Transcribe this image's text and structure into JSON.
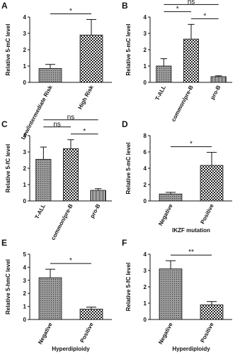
{
  "chart_data": [
    {
      "type": "bar",
      "panel": "A",
      "ylabel": "Relative 5-mC level",
      "categories": [
        "Low/intermediate Risk",
        "High Risk"
      ],
      "values": [
        0.85,
        2.9
      ],
      "errors": [
        0.25,
        0.95
      ],
      "ylim": [
        0,
        4
      ],
      "yticks": [
        0,
        1,
        2,
        3,
        4
      ],
      "comparisons": [
        {
          "pair": [
            0,
            1
          ],
          "label": "*"
        }
      ]
    },
    {
      "type": "bar",
      "panel": "B",
      "ylabel": "Relative 5-mC level",
      "categories": [
        "T-ALL",
        "common/pre-B",
        "pro-B"
      ],
      "values": [
        1.0,
        2.65,
        0.35
      ],
      "errors": [
        0.45,
        0.9,
        0.05
      ],
      "ylim": [
        0,
        4
      ],
      "yticks": [
        0,
        1,
        2,
        3,
        4
      ],
      "comparisons": [
        {
          "pair": [
            1,
            2
          ],
          "label": "*"
        },
        {
          "pair": [
            0,
            1
          ],
          "label": "*"
        },
        {
          "pair": [
            0,
            2
          ],
          "label": "ns"
        }
      ]
    },
    {
      "type": "bar",
      "panel": "C",
      "ylabel": "Relative 5-fC level",
      "categories": [
        "T-ALL",
        "common/pre-B",
        "pro-B"
      ],
      "values": [
        2.55,
        3.2,
        0.65
      ],
      "errors": [
        0.75,
        0.55,
        0.1
      ],
      "ylim": [
        0,
        4
      ],
      "yticks": [
        0,
        1,
        2,
        3,
        4
      ],
      "comparisons": [
        {
          "pair": [
            1,
            2
          ],
          "label": "*"
        },
        {
          "pair": [
            0,
            1
          ],
          "label": "ns"
        },
        {
          "pair": [
            0,
            2
          ],
          "label": "ns"
        }
      ]
    },
    {
      "type": "bar",
      "panel": "D",
      "ylabel": "Relative 5-mC level",
      "xlabel": "IKZF mutation",
      "categories": [
        "Negative",
        "Positive"
      ],
      "values": [
        0.85,
        4.35
      ],
      "errors": [
        0.2,
        1.6
      ],
      "ylim": [
        0,
        8
      ],
      "yticks": [
        0,
        2,
        4,
        6,
        8
      ],
      "comparisons": [
        {
          "pair": [
            0,
            1
          ],
          "label": "*"
        }
      ]
    },
    {
      "type": "bar",
      "panel": "E",
      "ylabel": "Relative 5-hmC level",
      "xlabel": "Hyperdiploidy",
      "categories": [
        "Negative",
        "Positive"
      ],
      "values": [
        3.2,
        0.8
      ],
      "errors": [
        0.65,
        0.15
      ],
      "ylim": [
        0,
        5
      ],
      "yticks": [
        0,
        1,
        2,
        3,
        4,
        5
      ],
      "comparisons": [
        {
          "pair": [
            0,
            1
          ],
          "label": "*"
        }
      ]
    },
    {
      "type": "bar",
      "panel": "F",
      "ylabel": "Relative 5-fC level",
      "xlabel": "Hyperdiploidy",
      "categories": [
        "Negative",
        "Positive"
      ],
      "values": [
        3.1,
        0.9
      ],
      "errors": [
        0.5,
        0.2
      ],
      "ylim": [
        0,
        4
      ],
      "yticks": [
        0,
        1,
        2,
        3,
        4
      ],
      "comparisons": [
        {
          "pair": [
            0,
            1
          ],
          "label": "**"
        }
      ]
    }
  ]
}
